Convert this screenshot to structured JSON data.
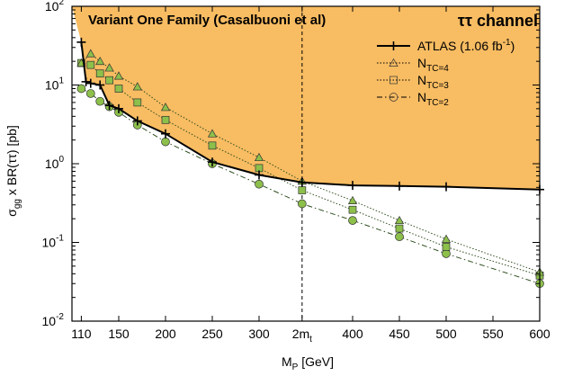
{
  "chart_data": {
    "type": "line",
    "title": "Variant One Family (Casalbuoni et al)",
    "channel_label": "ττ channel",
    "xlabel": "M_P [GeV]",
    "ylabel": "σ_gg x BR(ττ) [pb]",
    "xlim": [
      100,
      600
    ],
    "ylim": [
      0.01,
      100
    ],
    "yscale": "log",
    "grid": false,
    "legend_position": "top-right",
    "x_ticks": [
      {
        "value": 110,
        "label": "110"
      },
      {
        "value": 150,
        "label": "150"
      },
      {
        "value": 200,
        "label": "200"
      },
      {
        "value": 250,
        "label": "250"
      },
      {
        "value": 300,
        "label": "300"
      },
      {
        "value": 346,
        "label": "2m_t"
      },
      {
        "value": 400,
        "label": "400"
      },
      {
        "value": 450,
        "label": "450"
      },
      {
        "value": 500,
        "label": "500"
      },
      {
        "value": 550,
        "label": "550"
      },
      {
        "value": 600,
        "label": "600"
      }
    ],
    "y_ticks": [
      {
        "value": 100,
        "label": "10",
        "exp": "2"
      },
      {
        "value": 10,
        "label": "10",
        "exp": "1"
      },
      {
        "value": 1,
        "label": "10",
        "exp": "0"
      },
      {
        "value": 0.1,
        "label": "10",
        "exp": "-1"
      },
      {
        "value": 0.01,
        "label": "10",
        "exp": "-2"
      }
    ],
    "threshold_x": 346,
    "excluded_region_color": "#F8BC62",
    "series": [
      {
        "name": "ATLAS (1.06 fb^-1)",
        "key": "atlas",
        "color": "#000000",
        "marker": "plus",
        "line_style": "solid",
        "x": [
          110,
          115,
          120,
          130,
          140,
          150,
          170,
          200,
          250,
          300,
          346,
          400,
          450,
          500,
          600
        ],
        "y": [
          35,
          11,
          10.5,
          10,
          5.5,
          5,
          3.5,
          2.4,
          1.05,
          0.72,
          0.58,
          0.53,
          0.52,
          0.51,
          0.47
        ]
      },
      {
        "name": "N_TC=4",
        "key": "ntc4",
        "color": "#000000",
        "marker_fill": "#8DC04B",
        "marker": "triangle",
        "line_style": "dotted",
        "x": [
          110,
          120,
          130,
          140,
          150,
          170,
          200,
          250,
          300,
          346,
          400,
          450,
          500,
          600
        ],
        "y": [
          19,
          25,
          20,
          16.5,
          13,
          9.5,
          5.2,
          2.4,
          1.2,
          0.6,
          0.34,
          0.19,
          0.11,
          0.042
        ]
      },
      {
        "name": "N_TC=3",
        "key": "ntc3",
        "color": "#000000",
        "marker_fill": "#8DC04B",
        "marker": "square",
        "line_style": "dotted",
        "x": [
          110,
          120,
          130,
          140,
          150,
          170,
          200,
          250,
          300,
          346,
          400,
          450,
          500,
          600
        ],
        "y": [
          19,
          18,
          14,
          11.5,
          9,
          6,
          3.6,
          1.7,
          0.88,
          0.46,
          0.26,
          0.15,
          0.088,
          0.038
        ]
      },
      {
        "name": "N_TC=2",
        "key": "ntc2",
        "color": "#000000",
        "marker_fill": "#8DC04B",
        "marker": "circle",
        "line_style": "dashdot",
        "x": [
          110,
          120,
          130,
          140,
          150,
          170,
          200,
          250,
          300,
          346,
          400,
          450,
          500,
          600
        ],
        "y": [
          9,
          7.8,
          6.2,
          5.3,
          4.5,
          3.1,
          1.9,
          1.0,
          0.55,
          0.31,
          0.19,
          0.118,
          0.072,
          0.03
        ]
      }
    ]
  }
}
